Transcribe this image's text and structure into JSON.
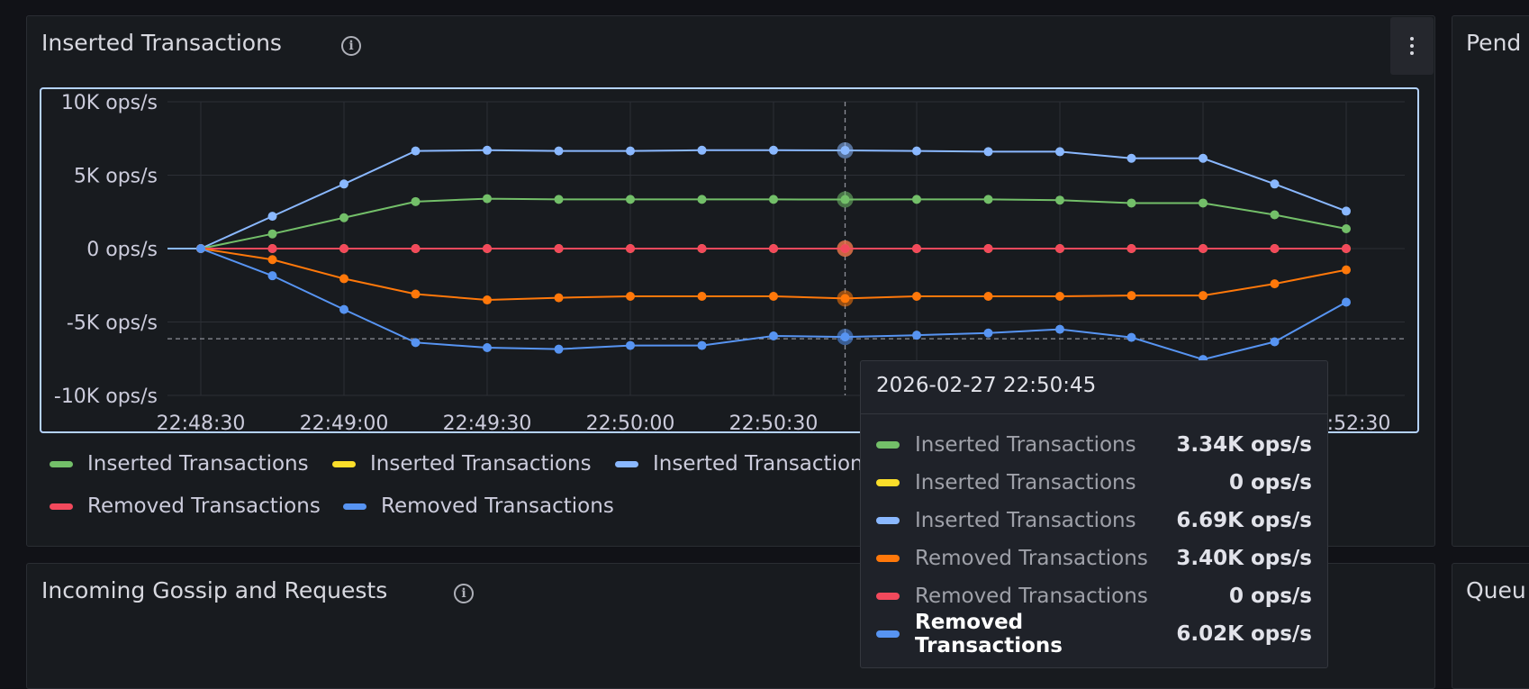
{
  "panels": {
    "main_title": "Inserted Transactions",
    "right_top_title": "Pend",
    "bottom_title": "Incoming Gossip and Requests",
    "right_bottom_title": "Queu"
  },
  "legend": [
    {
      "label": "Inserted Transactions",
      "color": "#73bf69"
    },
    {
      "label": "Inserted Transactions",
      "color": "#fade2a"
    },
    {
      "label": "Inserted Transactions",
      "color": "#8ab8ff"
    },
    {
      "label": "Removed Transactions",
      "color": "#f2495c"
    },
    {
      "label": "Removed Transactions",
      "color": "#5794f2"
    }
  ],
  "tooltip": {
    "title": "2026-02-27 22:50:45",
    "rows": [
      {
        "name": "Inserted Transactions",
        "value": "3.34K ops/s",
        "color": "#73bf69"
      },
      {
        "name": "Inserted Transactions",
        "value": "0 ops/s",
        "color": "#fade2a"
      },
      {
        "name": "Inserted Transactions",
        "value": "6.69K ops/s",
        "color": "#8ab8ff"
      },
      {
        "name": "Removed Transactions",
        "value": "3.40K ops/s",
        "color": "#ff780a"
      },
      {
        "name": "Removed Transactions",
        "value": "0 ops/s",
        "color": "#f2495c"
      },
      {
        "name": "Removed Transactions",
        "value": "6.02K ops/s",
        "color": "#5794f2"
      }
    ]
  },
  "chart_data": {
    "type": "line",
    "x_ticks": [
      "22:48:30",
      "22:49:00",
      "22:49:30",
      "22:50:00",
      "22:50:30",
      "22:52:30"
    ],
    "y_ticks": [
      "10K ops/s",
      "5K ops/s",
      "0 ops/s",
      "-5K ops/s",
      "-10K ops/s"
    ],
    "ylim": [
      -10000,
      10000
    ],
    "x": [
      "22:48:30",
      "22:48:45",
      "22:49:00",
      "22:49:15",
      "22:49:30",
      "22:49:45",
      "22:50:00",
      "22:50:15",
      "22:50:30",
      "22:50:45",
      "22:51:00",
      "22:51:15",
      "22:51:30",
      "22:51:45",
      "22:52:00",
      "22:52:15",
      "22:52:30"
    ],
    "hover_x": "22:50:45",
    "series": [
      {
        "color": "#8ab8ff",
        "values": [
          0,
          2200,
          4400,
          6650,
          6700,
          6650,
          6650,
          6700,
          6700,
          6690,
          6650,
          6600,
          6600,
          6150,
          6150,
          4400,
          2550
        ]
      },
      {
        "color": "#73bf69",
        "values": [
          0,
          1000,
          2100,
          3200,
          3400,
          3350,
          3350,
          3350,
          3350,
          3340,
          3350,
          3350,
          3300,
          3100,
          3100,
          2300,
          1350
        ]
      },
      {
        "color": "#fade2a",
        "values": [
          0,
          0,
          0,
          0,
          0,
          0,
          0,
          0,
          0,
          0,
          0,
          0,
          0,
          0,
          0,
          0,
          0
        ]
      },
      {
        "color": "#f2495c",
        "values": [
          0,
          0,
          0,
          0,
          0,
          0,
          0,
          0,
          0,
          0,
          0,
          0,
          0,
          0,
          0,
          0,
          0
        ]
      },
      {
        "color": "#ff780a",
        "values": [
          0,
          -750,
          -2050,
          -3100,
          -3500,
          -3350,
          -3250,
          -3250,
          -3250,
          -3400,
          -3250,
          -3250,
          -3250,
          -3200,
          -3200,
          -2400,
          -1450
        ]
      },
      {
        "color": "#5794f2",
        "values": [
          0,
          -1850,
          -4150,
          -6400,
          -6750,
          -6850,
          -6600,
          -6600,
          -5950,
          -6020,
          -5900,
          -5750,
          -5500,
          -6050,
          -7550,
          -6350,
          -3650
        ]
      }
    ]
  }
}
